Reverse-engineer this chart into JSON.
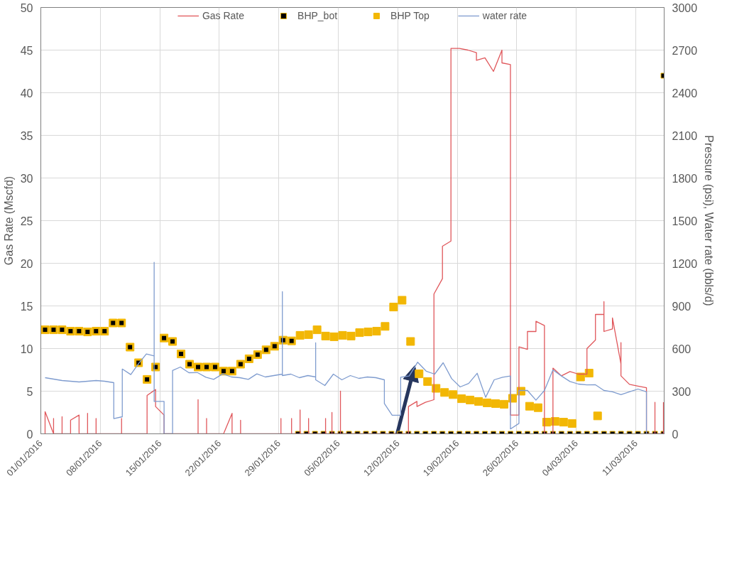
{
  "chart_data": {
    "type": "line",
    "ylabel": "Gas Rate (Mscfd)",
    "y2label": "Pressure (psi), Water rate (bbls/d)",
    "legend": "top",
    "grid": true,
    "line_style": "solid",
    "xlim": [
      "2016-01-01T00:00",
      "2016-03-14T08:00"
    ],
    "xticks": [
      {
        "value": "2016-01-01",
        "label": "01/01/2016"
      },
      {
        "value": "2016-01-08",
        "label": "08/01/2016"
      },
      {
        "value": "2016-01-15",
        "label": "15/01/2016"
      },
      {
        "value": "2016-01-22",
        "label": "22/01/2016"
      },
      {
        "value": "2016-01-29",
        "label": "29/01/2016"
      },
      {
        "value": "2016-02-05",
        "label": "05/02/2016"
      },
      {
        "value": "2016-02-12",
        "label": "12/02/2016"
      },
      {
        "value": "2016-02-19",
        "label": "19/02/2016"
      },
      {
        "value": "2016-02-26",
        "label": "26/02/2016"
      },
      {
        "value": "2016-03-04",
        "label": "04/03/2016"
      },
      {
        "value": "2016-03-11",
        "label": "11/03/2016"
      }
    ],
    "ylim": [
      0,
      50
    ],
    "yticks": [
      0,
      5,
      10,
      15,
      20,
      25,
      30,
      35,
      40,
      45,
      50
    ],
    "y2lim": [
      0,
      3000
    ],
    "y2ticks": [
      0,
      300,
      600,
      900,
      1200,
      1500,
      1800,
      2100,
      2400,
      2700,
      3000
    ],
    "series": [
      {
        "name": "Gas Rate",
        "type": "line",
        "color": "#e0575b",
        "x": [
          "2016-01-01T12:00",
          "2016-01-01T12:00",
          "2016-01-02T12:00",
          "2016-01-02T12:00",
          "2016-01-02T12:00",
          "2016-01-03T12:00",
          "2016-01-03T12:00",
          "2016-01-03T12:00",
          "2016-01-04T12:00",
          "2016-01-04T12:00",
          "2016-01-05T12:00",
          "2016-01-05T12:00",
          "2016-01-06T12:00",
          "2016-01-06T12:00",
          "2016-01-06T12:00",
          "2016-01-07T12:00",
          "2016-01-07T12:00",
          "2016-01-07T12:00",
          "2016-01-10T12:00",
          "2016-01-10T12:00",
          "2016-01-10T12:00",
          "2016-01-13T12:00",
          "2016-01-13T12:00",
          "2016-01-14T12:00",
          "2016-01-14T12:00",
          "2016-01-15T12:00",
          "2016-01-15T12:00",
          "2016-01-19T12:00",
          "2016-01-19T12:00",
          "2016-01-19T12:00",
          "2016-01-20T12:00",
          "2016-01-20T12:00",
          "2016-01-20T12:00",
          "2016-01-22T12:00",
          "2016-01-23T12:00",
          "2016-01-23T12:00",
          "2016-01-24T12:00",
          "2016-01-24T12:00",
          "2016-01-24T12:00",
          "2016-01-29T06:00",
          "2016-01-29T06:00",
          "2016-01-29T06:00",
          "2016-01-30T12:00",
          "2016-01-30T12:00",
          "2016-01-30T12:00",
          "2016-01-31T12:00",
          "2016-01-31T12:00",
          "2016-01-31T12:00",
          "2016-02-01T12:00",
          "2016-02-01T12:00",
          "2016-02-01T12:00",
          "2016-02-03T12:00",
          "2016-02-03T12:00",
          "2016-02-03T12:00",
          "2016-02-04T06:00",
          "2016-02-04T06:00",
          "2016-02-04T06:00",
          "2016-02-05T06:00",
          "2016-02-05T06:00",
          "2016-02-05T06:00",
          "2016-02-13T06:00",
          "2016-02-13T06:00",
          "2016-02-14T06:00",
          "2016-02-14T06:00",
          "2016-02-15T06:00",
          "2016-02-16T06:00",
          "2016-02-16T06:00",
          "2016-02-17T06:00",
          "2016-02-17T06:00",
          "2016-02-18T06:00",
          "2016-02-18T06:00",
          "2016-02-19T06:00",
          "2016-02-20T06:00",
          "2016-02-21T06:00",
          "2016-02-21T06:00",
          "2016-02-22T06:00",
          "2016-02-23T06:00",
          "2016-02-24T06:00",
          "2016-02-24T06:00",
          "2016-02-25T06:00",
          "2016-02-25T06:00",
          "2016-02-26T06:00",
          "2016-02-26T06:00",
          "2016-02-27T06:00",
          "2016-02-27T06:00",
          "2016-02-28T06:00",
          "2016-02-28T06:00",
          "2016-02-29T06:00",
          "2016-02-29T06:00",
          "2016-03-01T06:00",
          "2016-03-01T06:00",
          "2016-03-02T06:00",
          "2016-03-03T06:00",
          "2016-03-04T06:00",
          "2016-03-05T06:00",
          "2016-03-05T06:00",
          "2016-03-06T06:00",
          "2016-03-06T06:00",
          "2016-03-07T06:00",
          "2016-03-07T06:00",
          "2016-03-07T06:00",
          "2016-03-08T06:00",
          "2016-03-08T06:00",
          "2016-03-09T06:00",
          "2016-03-09T06:00",
          "2016-03-09T06:00",
          "2016-03-10T06:00",
          "2016-03-11T06:00",
          "2016-03-12T06:00",
          "2016-03-12T06:00",
          "2016-03-13T06:00",
          "2016-03-13T06:00",
          "2016-03-13T06:00",
          "2016-03-14T06:00",
          "2016-03-14T06:00"
        ],
        "values": [
          0,
          2.6,
          0,
          1.8,
          0,
          0,
          2.0,
          0,
          0,
          1.6,
          2.2,
          0,
          0,
          2.4,
          0,
          0,
          1.8,
          0,
          0,
          1.8,
          0,
          0,
          4.5,
          5.2,
          3.2,
          2.2,
          0,
          0,
          4.0,
          0,
          0,
          1.8,
          0,
          0,
          2.4,
          0,
          0,
          1.6,
          0,
          0,
          1.8,
          0,
          0,
          1.8,
          0,
          0,
          2.8,
          0,
          0,
          1.8,
          0,
          0,
          1.8,
          0,
          0,
          2.5,
          0,
          0,
          5.0,
          0,
          0,
          3.2,
          3.8,
          3.2,
          3.7,
          4.0,
          16.4,
          18.2,
          22.0,
          22.6,
          45.2,
          45.2,
          45.0,
          44.7,
          43.8,
          44.1,
          42.5,
          45.0,
          43.5,
          43.3,
          2.2,
          2.2,
          10.2,
          9.9,
          12.0,
          12.0,
          13.2,
          12.7,
          0,
          0,
          7.7,
          6.8,
          7.3,
          7.0,
          7.0,
          10.0,
          11.0,
          14.0,
          14.0,
          15.5,
          12.0,
          12.3,
          13.6,
          8.2,
          10.7,
          6.8,
          5.8,
          5.6,
          5.4,
          0,
          0,
          3.7,
          0,
          0,
          3.7
        ]
      },
      {
        "name": "BHP_bot",
        "type": "scatter",
        "axis": "y2",
        "marker": "square",
        "color": "#000000",
        "x": [
          "2016-01-01T12:00",
          "2016-01-02T12:00",
          "2016-01-03T12:00",
          "2016-01-04T12:00",
          "2016-01-05T12:00",
          "2016-01-06T12:00",
          "2016-01-07T12:00",
          "2016-01-08T12:00",
          "2016-01-09T12:00",
          "2016-01-10T12:00",
          "2016-01-11T12:00",
          "2016-01-12T12:00",
          "2016-01-13T12:00",
          "2016-01-14T12:00",
          "2016-01-15T12:00",
          "2016-01-16T12:00",
          "2016-01-17T12:00",
          "2016-01-18T12:00",
          "2016-01-19T12:00",
          "2016-01-20T12:00",
          "2016-01-21T12:00",
          "2016-01-22T12:00",
          "2016-01-23T12:00",
          "2016-01-24T12:00",
          "2016-01-25T12:00",
          "2016-01-26T12:00",
          "2016-01-27T12:00",
          "2016-01-28T12:00",
          "2016-01-29T12:00",
          "2016-01-30T12:00",
          "2016-01-31T06:00",
          "2016-02-01T06:00",
          "2016-02-02T06:00",
          "2016-02-03T06:00",
          "2016-02-04T06:00",
          "2016-02-05T06:00",
          "2016-02-06T06:00",
          "2016-02-07T06:00",
          "2016-02-08T06:00",
          "2016-02-09T06:00",
          "2016-02-10T06:00",
          "2016-02-11T06:00",
          "2016-02-12T06:00",
          "2016-02-13T06:00",
          "2016-02-14T06:00",
          "2016-02-15T06:00",
          "2016-02-16T06:00",
          "2016-02-17T06:00",
          "2016-02-18T06:00",
          "2016-02-19T06:00",
          "2016-02-20T06:00",
          "2016-02-21T06:00",
          "2016-02-22T06:00",
          "2016-02-23T06:00",
          "2016-02-24T06:00",
          "2016-02-25T06:00",
          "2016-02-26T06:00",
          "2016-02-27T06:00",
          "2016-02-28T06:00",
          "2016-02-29T06:00",
          "2016-03-01T06:00",
          "2016-03-02T06:00",
          "2016-03-03T06:00",
          "2016-03-04T06:00",
          "2016-03-05T06:00",
          "2016-03-06T06:00",
          "2016-03-07T06:00",
          "2016-03-08T06:00",
          "2016-03-09T06:00",
          "2016-03-10T06:00",
          "2016-03-11T06:00",
          "2016-03-12T06:00",
          "2016-03-13T06:00",
          "2016-03-14T06:00",
          "2016-03-14T06:00"
        ],
        "values": [
          732,
          732,
          732,
          722,
          722,
          717,
          722,
          722,
          780,
          780,
          610,
          500,
          383,
          470,
          674,
          650,
          562,
          490,
          470,
          470,
          470,
          441,
          441,
          490,
          528,
          557,
          591,
          616,
          659,
          654,
          0,
          0,
          0,
          0,
          0,
          0,
          0,
          0,
          0,
          0,
          0,
          0,
          0,
          0,
          0,
          0,
          0,
          0,
          0,
          0,
          0,
          0,
          0,
          0,
          0,
          0,
          0,
          0,
          0,
          0,
          0,
          0,
          0,
          0,
          0,
          0,
          0,
          0,
          0,
          0,
          0,
          0,
          0,
          0,
          2520
        ]
      },
      {
        "name": "BHP Top",
        "type": "scatter",
        "axis": "y2",
        "marker": "square",
        "color": "#f2b705",
        "x": [
          "2016-01-01T12:00",
          "2016-01-02T12:00",
          "2016-01-03T12:00",
          "2016-01-04T12:00",
          "2016-01-05T12:00",
          "2016-01-06T12:00",
          "2016-01-07T12:00",
          "2016-01-08T12:00",
          "2016-01-09T12:00",
          "2016-01-10T12:00",
          "2016-01-11T12:00",
          "2016-01-12T12:00",
          "2016-01-13T12:00",
          "2016-01-14T12:00",
          "2016-01-15T12:00",
          "2016-01-16T12:00",
          "2016-01-17T12:00",
          "2016-01-18T12:00",
          "2016-01-19T12:00",
          "2016-01-20T12:00",
          "2016-01-21T12:00",
          "2016-01-22T12:00",
          "2016-01-23T12:00",
          "2016-01-24T12:00",
          "2016-01-25T12:00",
          "2016-01-26T12:00",
          "2016-01-27T12:00",
          "2016-01-28T12:00",
          "2016-01-29T12:00",
          "2016-01-30T12:00",
          "2016-01-31T12:00",
          "2016-02-01T12:00",
          "2016-02-02T12:00",
          "2016-02-03T12:00",
          "2016-02-04T12:00",
          "2016-02-05T12:00",
          "2016-02-06T12:00",
          "2016-02-07T12:00",
          "2016-02-08T12:00",
          "2016-02-09T12:00",
          "2016-02-10T12:00",
          "2016-02-11T12:00",
          "2016-02-12T12:00",
          "2016-02-13T12:00",
          "2016-02-14T12:00",
          "2016-02-15T12:00",
          "2016-02-16T12:00",
          "2016-02-17T12:00",
          "2016-02-18T12:00",
          "2016-02-19T12:00",
          "2016-02-20T12:00",
          "2016-02-21T12:00",
          "2016-02-22T12:00",
          "2016-02-23T12:00",
          "2016-02-24T12:00",
          "2016-02-25T12:00",
          "2016-02-26T12:00",
          "2016-02-27T12:00",
          "2016-02-28T12:00",
          "2016-02-29T12:00",
          "2016-03-01T12:00",
          "2016-03-02T12:00",
          "2016-03-03T12:00",
          "2016-03-04T12:00",
          "2016-03-05T12:00",
          "2016-03-06T12:00"
        ],
        "values": [
          732,
          732,
          732,
          722,
          722,
          717,
          722,
          722,
          780,
          780,
          610,
          500,
          383,
          470,
          674,
          650,
          562,
          490,
          470,
          470,
          470,
          441,
          441,
          490,
          528,
          557,
          591,
          616,
          659,
          654,
          693,
          698,
          732,
          688,
          683,
          693,
          688,
          712,
          717,
          722,
          756,
          892,
          940,
          650,
          422,
          368,
          320,
          291,
          276,
          247,
          238,
          228,
          218,
          213,
          208,
          250,
          300,
          194,
          184,
          82,
          87,
          82,
          73,
          400,
          427,
          126
        ]
      },
      {
        "name": "water rate",
        "type": "line",
        "axis": "y2",
        "color": "#7f9ccf",
        "x": [
          "2016-01-01T12:00",
          "2016-01-02T12:00",
          "2016-01-03T12:00",
          "2016-01-04T12:00",
          "2016-01-05T12:00",
          "2016-01-06T12:00",
          "2016-01-07T12:00",
          "2016-01-08T12:00",
          "2016-01-09T14:00",
          "2016-01-09T14:00",
          "2016-01-10T14:00",
          "2016-01-10T14:00",
          "2016-01-11T14:00",
          "2016-01-12T12:00",
          "2016-01-13T10:00",
          "2016-01-14T08:00",
          "2016-01-14T08:00",
          "2016-01-14T08:00",
          "2016-01-15T12:00",
          "2016-01-15T12:00",
          "2016-01-16T12:00",
          "2016-01-16T12:00",
          "2016-01-17T10:00",
          "2016-01-18T10:00",
          "2016-01-19T10:00",
          "2016-01-20T10:00",
          "2016-01-21T08:00",
          "2016-01-22T10:00",
          "2016-01-23T10:00",
          "2016-01-24T10:00",
          "2016-01-25T10:00",
          "2016-01-26T10:00",
          "2016-01-27T10:00",
          "2016-01-28T10:00",
          "2016-01-29T10:00",
          "2016-01-29T10:00",
          "2016-01-29T10:00",
          "2016-01-30T10:00",
          "2016-01-31T10:00",
          "2016-02-01T10:00",
          "2016-02-02T08:00",
          "2016-02-02T08:00",
          "2016-02-02T08:00",
          "2016-02-03T10:00",
          "2016-02-04T10:00",
          "2016-02-05T10:00",
          "2016-02-06T10:00",
          "2016-02-07T10:00",
          "2016-02-08T10:00",
          "2016-02-09T10:00",
          "2016-02-10T10:00",
          "2016-02-10T10:00",
          "2016-02-11T08:00",
          "2016-02-12T08:00",
          "2016-02-12T08:00",
          "2016-02-13T08:00",
          "2016-02-14T08:00",
          "2016-02-15T08:00",
          "2016-02-16T08:00",
          "2016-02-17T08:00",
          "2016-02-18T08:00",
          "2016-02-19T08:00",
          "2016-02-20T08:00",
          "2016-02-21T08:00",
          "2016-02-22T08:00",
          "2016-02-23T08:00",
          "2016-02-24T08:00",
          "2016-02-25T06:00",
          "2016-02-25T06:00",
          "2016-02-26T06:00",
          "2016-02-26T06:00",
          "2016-02-27T06:00",
          "2016-02-28T06:00",
          "2016-02-29T06:00",
          "2016-03-01T06:00",
          "2016-03-02T06:00",
          "2016-03-03T06:00",
          "2016-03-04T06:00",
          "2016-03-05T06:00",
          "2016-03-06T06:00",
          "2016-03-07T06:00",
          "2016-03-08T06:00",
          "2016-03-09T06:00",
          "2016-03-10T06:00",
          "2016-03-11T06:00",
          "2016-03-12T06:00",
          "2016-03-12T06:00"
        ],
        "values": [
          395,
          385,
          375,
          370,
          365,
          370,
          375,
          370,
          360,
          107,
          120,
          456,
          417,
          494,
          562,
          548,
          1207,
          228,
          228,
          0,
          0,
          446,
          470,
          430,
          431,
          398,
          383,
          422,
          400,
          395,
          383,
          422,
          400,
          410,
          420,
          1000,
          410,
          420,
          395,
          410,
          400,
          640,
          380,
          340,
          420,
          380,
          410,
          390,
          400,
          395,
          380,
          213,
          131,
          131,
          398,
          407,
          504,
          441,
          420,
          500,
          388,
          330,
          354,
          426,
          257,
          380,
          398,
          407,
          34,
          73,
          305,
          305,
          237,
          305,
          450,
          407,
          368,
          350,
          344,
          345,
          305,
          296,
          276,
          296,
          315,
          296,
          0
        ]
      }
    ]
  }
}
